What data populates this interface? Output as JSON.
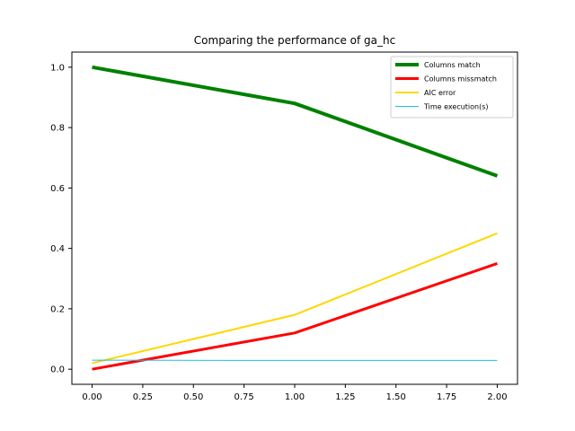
{
  "chart_data": {
    "type": "line",
    "title": "Comparing the performance of ga_hc",
    "xlabel": "",
    "ylabel": "",
    "xlim": [
      -0.1,
      2.1
    ],
    "ylim": [
      -0.05,
      1.05
    ],
    "xticks": [
      0.0,
      0.25,
      0.5,
      0.75,
      1.0,
      1.25,
      1.5,
      1.75,
      2.0
    ],
    "xtick_labels": [
      "0.00",
      "0.25",
      "0.50",
      "0.75",
      "1.00",
      "1.25",
      "1.50",
      "1.75",
      "2.00"
    ],
    "yticks": [
      0.0,
      0.2,
      0.4,
      0.6,
      0.8,
      1.0
    ],
    "ytick_labels": [
      "0.0",
      "0.2",
      "0.4",
      "0.6",
      "0.8",
      "1.0"
    ],
    "grid": false,
    "legend_position": "top-right",
    "x": [
      0,
      1,
      2
    ],
    "series": [
      {
        "name": "Columns match",
        "values": [
          1.0,
          0.88,
          0.64
        ],
        "color": "#008000",
        "width": 4
      },
      {
        "name": "Columns missmatch",
        "values": [
          0.0,
          0.12,
          0.35
        ],
        "color": "#ff0000",
        "width": 3
      },
      {
        "name": "AIC error",
        "values": [
          0.02,
          0.18,
          0.45
        ],
        "color": "#ffd700",
        "width": 2
      },
      {
        "name": "Time execution(s)",
        "values": [
          0.03,
          0.029,
          0.029
        ],
        "color": "#1ebfe6",
        "width": 1
      }
    ]
  }
}
